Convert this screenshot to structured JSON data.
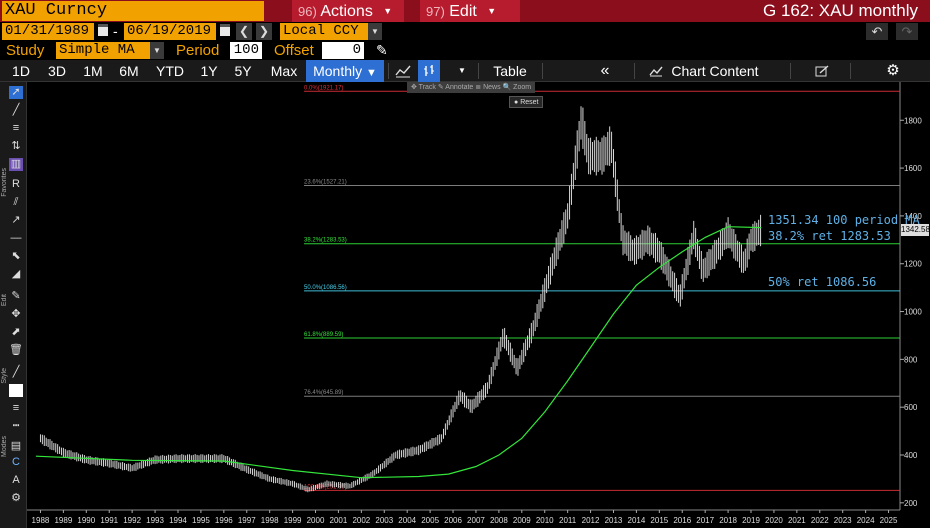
{
  "header": {
    "security": "XAU Curncy",
    "actions": {
      "num": "96)",
      "label": "Actions"
    },
    "edit": {
      "num": "97)",
      "label": "Edit"
    },
    "window_title": "G 162: XAU monthly"
  },
  "range": {
    "start": "01/31/1989",
    "separator": "-",
    "end": "06/19/2019",
    "currency": "Local CCY"
  },
  "study": {
    "label": "Study",
    "value": "Simple MA",
    "period_label": "Period",
    "period_value": "100",
    "offset_label": "Offset",
    "offset_value": "0"
  },
  "toolbar": {
    "ranges": [
      "1D",
      "3D",
      "1M",
      "6M",
      "YTD",
      "1Y",
      "5Y",
      "Max"
    ],
    "frequency": "Monthly",
    "table": "Table",
    "chart_content": "Chart Content"
  },
  "chart_toolbar": {
    "mini": "✥ Track  ✎ Annotate  ≣ News  🔍 Zoom",
    "reset": "Reset"
  },
  "left_tools": {
    "section_labels": [
      "Favorites",
      "Edit",
      "Style",
      "Modes"
    ]
  },
  "annotations": {
    "ma": "1351.34 100 period MA",
    "fib382": "38.2% ret 1283.53",
    "fib50": "50% ret 1086.56"
  },
  "price_tag": "1342.58",
  "colors": {
    "price": "#d6d6d6",
    "ma": "#33e53a",
    "fib_top": "#e0303a",
    "fib_mid": "#8a8a8a",
    "fib_green": "#33e53a",
    "fib_cyan": "#46d2ee",
    "annotation": "#5fb0e6",
    "header_bg": "#8b0e1c",
    "accent": "#f2a200"
  },
  "chart_data": {
    "type": "line",
    "x_ticks": [
      "1988",
      "1989",
      "1990",
      "1991",
      "1992",
      "1993",
      "1994",
      "1995",
      "1996",
      "1997",
      "1998",
      "1999",
      "2000",
      "2001",
      "2002",
      "2003",
      "2004",
      "2005",
      "2006",
      "2007",
      "2008",
      "2009",
      "2010",
      "2011",
      "2012",
      "2013",
      "2014",
      "2015",
      "2016",
      "2017",
      "2018",
      "2019",
      "2020",
      "2021",
      "2022",
      "2023",
      "2024",
      "2025"
    ],
    "y_ticks": [
      200,
      400,
      600,
      800,
      1000,
      1200,
      1400,
      1600,
      1800
    ],
    "ylim": [
      170,
      1960
    ],
    "xlim": [
      1987.5,
      2025.5
    ],
    "grid": false,
    "series": [
      {
        "kind": "price",
        "x": [
          1988.0,
          1989.0,
          1990.0,
          1991.0,
          1992.0,
          1993.0,
          1994.0,
          1995.0,
          1996.0,
          1997.0,
          1998.0,
          1999.0,
          1999.7,
          2000.5,
          2001.5,
          2002.5,
          2003.5,
          2004.5,
          2005.5,
          2006.3,
          2006.8,
          2007.5,
          2008.2,
          2008.8,
          2009.5,
          2010.5,
          2011.0,
          2011.6,
          2011.9,
          2012.5,
          2012.9,
          2013.4,
          2013.9,
          2014.5,
          2015.0,
          2015.9,
          2016.5,
          2016.9,
          2017.5,
          2018.0,
          2018.7,
          2019.0,
          2019.45
        ],
        "values": [
          470,
          410,
          380,
          365,
          345,
          380,
          385,
          385,
          385,
          340,
          300,
          280,
          255,
          280,
          270,
          320,
          400,
          420,
          470,
          650,
          600,
          680,
          900,
          760,
          930,
          1250,
          1400,
          1800,
          1650,
          1650,
          1700,
          1300,
          1250,
          1300,
          1250,
          1060,
          1320,
          1170,
          1250,
          1330,
          1200,
          1300,
          1342
        ]
      },
      {
        "kind": "ma",
        "x": [
          1987.8,
          1992.0,
          1996.0,
          1999.0,
          2002.0,
          2004.5,
          2005.8,
          2007.0,
          2008.0,
          2009.0,
          2010.0,
          2011.0,
          2012.0,
          2013.0,
          2014.0,
          2015.0,
          2016.0,
          2017.0,
          2018.0,
          2019.45
        ],
        "values": [
          395,
          378,
          375,
          335,
          305,
          310,
          320,
          352,
          400,
          470,
          580,
          710,
          850,
          990,
          1110,
          1185,
          1250,
          1310,
          1355,
          1351
        ]
      }
    ],
    "fibonacci": [
      {
        "label": "0.0%(1921.17)",
        "value": 1921.17,
        "color": "#e0303a"
      },
      {
        "label": "23.6%(1527.21)",
        "value": 1527.21,
        "color": "#8a8a8a"
      },
      {
        "label": "38.2%(1283.53)",
        "value": 1283.53,
        "color": "#33e53a"
      },
      {
        "label": "50.0%(1086.56)",
        "value": 1086.56,
        "color": "#46d2ee"
      },
      {
        "label": "61.8%(889.59)",
        "value": 889.59,
        "color": "#33e53a"
      },
      {
        "label": "76.4%(645.89)",
        "value": 645.89,
        "color": "#8a8a8a"
      },
      {
        "label": "100.0%(251.95)",
        "value": 251.95,
        "color": "#e0303a"
      }
    ]
  }
}
